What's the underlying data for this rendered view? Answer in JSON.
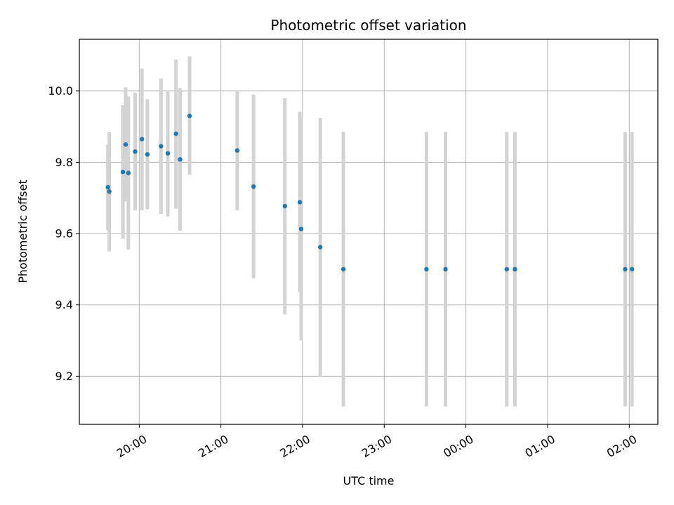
{
  "chart_data": {
    "type": "scatter",
    "title": "Photometric offset variation",
    "xlabel": "UTC time",
    "ylabel": "Photometric offset",
    "x_unit": "UTC time (HH:MM), spanning midnight",
    "xlim": [
      "19:16",
      "02:21"
    ],
    "ylim": [
      9.065,
      10.145
    ],
    "xticks": [
      "20:00",
      "21:00",
      "22:00",
      "23:00",
      "00:00",
      "01:00",
      "02:00"
    ],
    "yticks": [
      "9.2",
      "9.4",
      "9.6",
      "9.8",
      "10.0"
    ],
    "grid": true,
    "marker_color": "#1f77b4",
    "errorbar_color": "#d3d3d3",
    "points": [
      {
        "x": "19:37",
        "y": 9.73,
        "err_low": 9.61,
        "err_high": 9.85
      },
      {
        "x": "19:38",
        "y": 9.718,
        "err_low": 9.55,
        "err_high": 9.885
      },
      {
        "x": "19:48",
        "y": 9.773,
        "err_low": 9.585,
        "err_high": 9.96
      },
      {
        "x": "19:50",
        "y": 9.85,
        "err_low": 9.69,
        "err_high": 10.01
      },
      {
        "x": "19:52",
        "y": 9.77,
        "err_low": 9.555,
        "err_high": 9.985
      },
      {
        "x": "19:57",
        "y": 9.83,
        "err_low": 9.665,
        "err_high": 9.995
      },
      {
        "x": "20:02",
        "y": 9.865,
        "err_low": 9.665,
        "err_high": 10.063
      },
      {
        "x": "20:06",
        "y": 9.822,
        "err_low": 9.668,
        "err_high": 9.977
      },
      {
        "x": "20:16",
        "y": 9.845,
        "err_low": 9.655,
        "err_high": 10.035
      },
      {
        "x": "20:21",
        "y": 9.825,
        "err_low": 9.648,
        "err_high": 10.0
      },
      {
        "x": "20:27",
        "y": 9.88,
        "err_low": 9.67,
        "err_high": 10.088
      },
      {
        "x": "20:30",
        "y": 9.808,
        "err_low": 9.608,
        "err_high": 10.008
      },
      {
        "x": "20:37",
        "y": 9.93,
        "err_low": 9.765,
        "err_high": 10.097
      },
      {
        "x": "21:12",
        "y": 9.833,
        "err_low": 9.665,
        "err_high": 10.0
      },
      {
        "x": "21:24",
        "y": 9.732,
        "err_low": 9.475,
        "err_high": 9.99
      },
      {
        "x": "21:47",
        "y": 9.677,
        "err_low": 9.373,
        "err_high": 9.98
      },
      {
        "x": "21:58",
        "y": 9.688,
        "err_low": 9.435,
        "err_high": 9.942
      },
      {
        "x": "21:59",
        "y": 9.613,
        "err_low": 9.3,
        "err_high": 9.925
      },
      {
        "x": "22:13",
        "y": 9.562,
        "err_low": 9.2,
        "err_high": 9.925
      },
      {
        "x": "22:30",
        "y": 9.5,
        "err_low": 9.115,
        "err_high": 9.885
      },
      {
        "x": "23:31",
        "y": 9.5,
        "err_low": 9.115,
        "err_high": 9.885
      },
      {
        "x": "23:45",
        "y": 9.5,
        "err_low": 9.115,
        "err_high": 9.885
      },
      {
        "x": "00:30",
        "y": 9.5,
        "err_low": 9.115,
        "err_high": 9.885
      },
      {
        "x": "00:36",
        "y": 9.5,
        "err_low": 9.115,
        "err_high": 9.885
      },
      {
        "x": "01:57",
        "y": 9.5,
        "err_low": 9.115,
        "err_high": 9.885
      },
      {
        "x": "02:02",
        "y": 9.5,
        "err_low": 9.115,
        "err_high": 9.885
      }
    ]
  }
}
